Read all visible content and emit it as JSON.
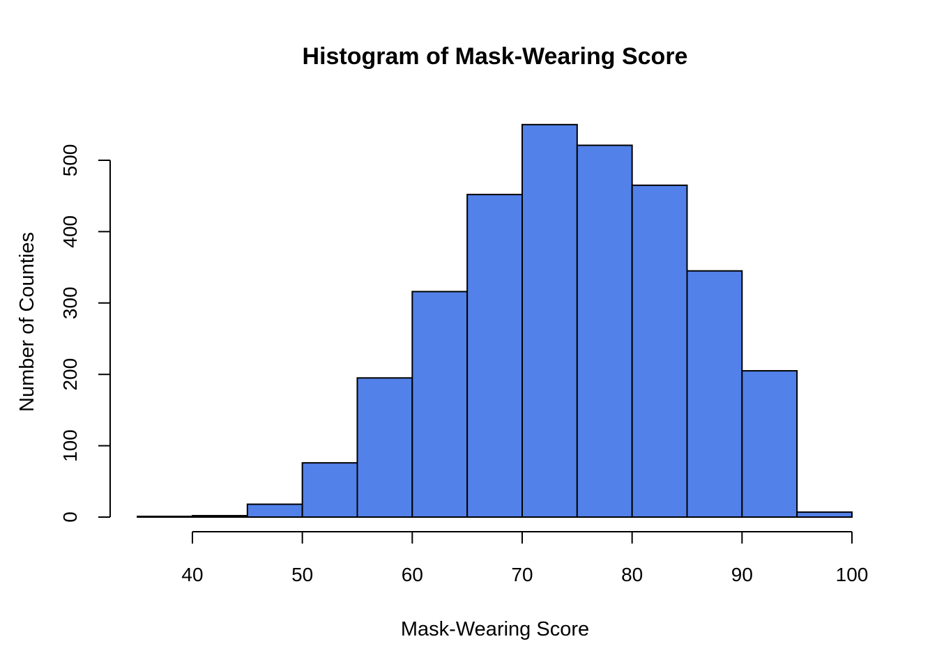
{
  "chart_data": {
    "type": "bar",
    "title": "Histogram of Mask-Wearing Score",
    "xlabel": "Mask-Wearing Score",
    "ylabel": "Number of Counties",
    "bar_color": "#5281E9",
    "bins": [
      {
        "start": 35,
        "end": 40,
        "count": 1
      },
      {
        "start": 40,
        "end": 45,
        "count": 2
      },
      {
        "start": 45,
        "end": 50,
        "count": 18
      },
      {
        "start": 50,
        "end": 55,
        "count": 76
      },
      {
        "start": 55,
        "end": 60,
        "count": 195
      },
      {
        "start": 60,
        "end": 65,
        "count": 316
      },
      {
        "start": 65,
        "end": 70,
        "count": 452
      },
      {
        "start": 70,
        "end": 75,
        "count": 550
      },
      {
        "start": 75,
        "end": 80,
        "count": 521
      },
      {
        "start": 80,
        "end": 85,
        "count": 465
      },
      {
        "start": 85,
        "end": 90,
        "count": 345
      },
      {
        "start": 90,
        "end": 95,
        "count": 205
      },
      {
        "start": 95,
        "end": 100,
        "count": 7
      }
    ],
    "x_ticks": [
      "40",
      "50",
      "60",
      "70",
      "80",
      "90",
      "100"
    ],
    "y_ticks": [
      "0",
      "100",
      "200",
      "300",
      "400",
      "500"
    ],
    "xlim": [
      40,
      100
    ],
    "ylim": [
      0,
      500
    ],
    "grid": false
  }
}
